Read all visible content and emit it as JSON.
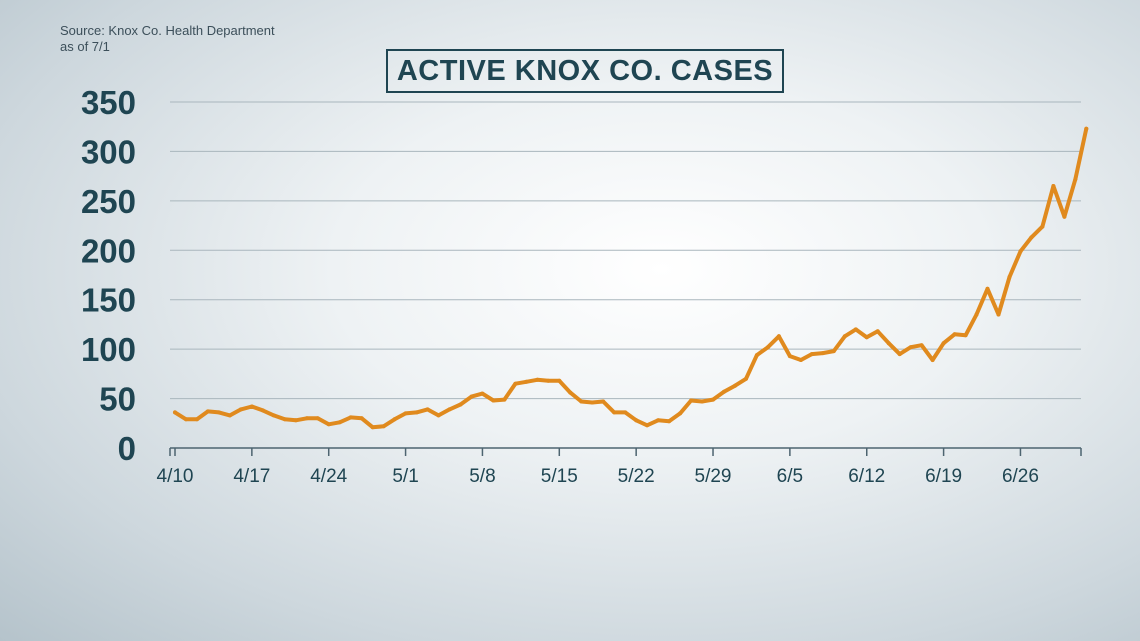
{
  "source": {
    "line1": "Source: Knox Co. Health Department",
    "line2": "as of 7/1"
  },
  "chart_data": {
    "type": "line",
    "title": "ACTIVE KNOX CO. CASES",
    "xlabel": "",
    "ylabel": "",
    "x_start": "4/10",
    "ylim": [
      0,
      350
    ],
    "yticks": [
      0,
      50,
      100,
      150,
      200,
      250,
      300,
      350
    ],
    "xtick_labels": [
      "4/10",
      "4/17",
      "4/24",
      "5/1",
      "5/8",
      "5/15",
      "5/22",
      "5/29",
      "6/5",
      "6/12",
      "6/19",
      "6/26"
    ],
    "grid": true,
    "line_color": "#e08a1e",
    "series": [
      {
        "values": [
          36,
          29,
          29,
          37,
          36,
          33,
          39,
          42,
          38,
          33,
          29,
          28,
          30,
          30,
          24,
          26,
          31,
          30,
          21,
          22,
          29,
          35,
          36,
          39,
          33,
          39,
          44,
          52,
          55,
          48,
          49,
          65,
          67,
          69,
          68,
          68,
          56,
          47,
          46,
          47,
          36,
          36,
          28,
          23,
          28,
          27,
          35,
          48,
          47,
          49,
          57,
          63,
          70,
          94,
          102,
          113,
          93,
          89,
          95,
          96,
          98,
          113,
          120,
          112,
          118,
          106,
          95,
          102,
          104,
          89,
          106,
          115,
          114,
          135,
          161,
          135,
          173,
          199,
          213,
          224,
          265,
          234,
          272,
          323
        ]
      }
    ]
  }
}
